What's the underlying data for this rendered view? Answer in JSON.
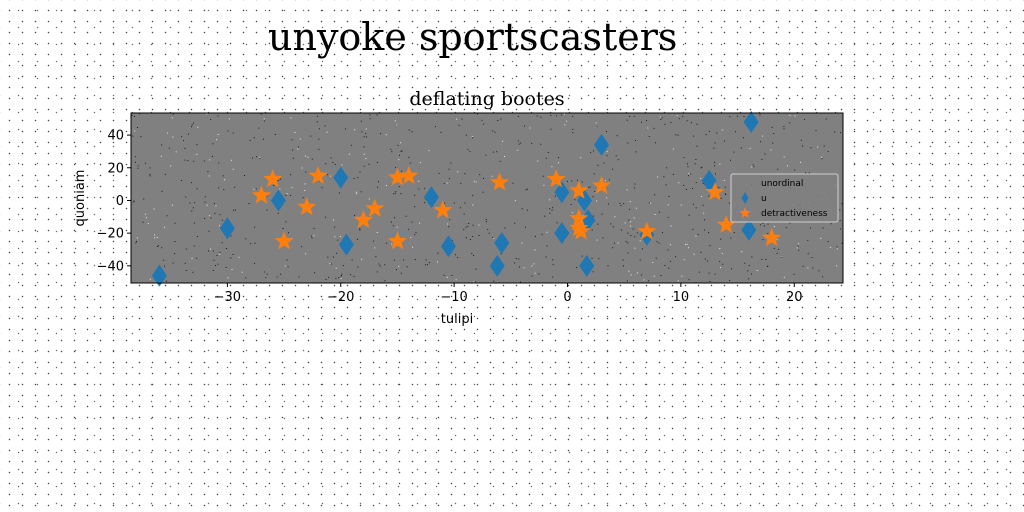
{
  "figure": {
    "suptitle": "unyoke sportscasters"
  },
  "colors": {
    "axes_bg": "#808080",
    "series_blue": "#1f77b4",
    "series_orange": "#ff7f0e"
  },
  "chart_data": {
    "type": "scatter",
    "title": "deflating bootes",
    "xlabel": "tulipi",
    "ylabel": "quoniam",
    "xlim": [
      -38.5,
      24.3
    ],
    "ylim": [
      -50.5,
      53.5
    ],
    "xticks": [
      -30,
      -20,
      -10,
      0,
      10,
      20
    ],
    "xtick_labels": [
      "−30",
      "−20",
      "−10",
      "0",
      "10",
      "20"
    ],
    "yticks": [
      -40,
      -20,
      0,
      20,
      40
    ],
    "ytick_labels": [
      "−40",
      "−20",
      "0",
      "20",
      "40"
    ],
    "grid": false,
    "legend_position": "right",
    "series": [
      {
        "name": "unordinal",
        "marker": "none",
        "color": "#ff7f0e",
        "points": []
      },
      {
        "name": "u",
        "marker": "diamond",
        "color": "#1f77b4",
        "points": [
          {
            "x": -36,
            "y": -46
          },
          {
            "x": -30,
            "y": -17
          },
          {
            "x": -25.5,
            "y": 0
          },
          {
            "x": -20,
            "y": 14
          },
          {
            "x": -19.5,
            "y": -27
          },
          {
            "x": -12,
            "y": 2
          },
          {
            "x": -10.5,
            "y": -28
          },
          {
            "x": -6.2,
            "y": -40
          },
          {
            "x": -5.8,
            "y": -26
          },
          {
            "x": -0.5,
            "y": -20
          },
          {
            "x": -0.5,
            "y": 5
          },
          {
            "x": 1.5,
            "y": 0
          },
          {
            "x": 1.8,
            "y": -12
          },
          {
            "x": 1.7,
            "y": -40
          },
          {
            "x": 3,
            "y": 34
          },
          {
            "x": 7,
            "y": -21
          },
          {
            "x": 12.5,
            "y": 12
          },
          {
            "x": 16,
            "y": -18
          },
          {
            "x": 16.2,
            "y": 48
          }
        ]
      },
      {
        "name": "detractiveness",
        "marker": "star",
        "color": "#ff7f0e",
        "points": [
          {
            "x": -27,
            "y": 3
          },
          {
            "x": -26,
            "y": 13
          },
          {
            "x": -25,
            "y": -25
          },
          {
            "x": -23,
            "y": -4
          },
          {
            "x": -22,
            "y": 15
          },
          {
            "x": -18,
            "y": -12
          },
          {
            "x": -17,
            "y": -5
          },
          {
            "x": -15,
            "y": 14
          },
          {
            "x": -15,
            "y": -25
          },
          {
            "x": -14,
            "y": 15
          },
          {
            "x": -11,
            "y": -6
          },
          {
            "x": -6,
            "y": 11
          },
          {
            "x": -1,
            "y": 13
          },
          {
            "x": 1,
            "y": 6
          },
          {
            "x": 1,
            "y": -11
          },
          {
            "x": 1,
            "y": -17
          },
          {
            "x": 1.2,
            "y": -19
          },
          {
            "x": 3,
            "y": 9
          },
          {
            "x": 7,
            "y": -19
          },
          {
            "x": 13,
            "y": 5
          },
          {
            "x": 14,
            "y": -15
          },
          {
            "x": 18,
            "y": -23
          }
        ]
      }
    ]
  }
}
